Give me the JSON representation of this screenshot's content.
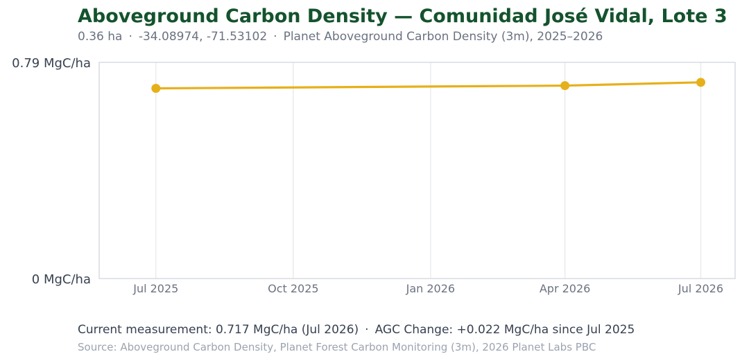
{
  "header": {
    "title": "Aboveground Carbon Density — Comunidad José Vidal, Lote 3",
    "area": "0.36 ha",
    "coords": "-34.08974, -71.53102",
    "product": "Planet Aboveground Carbon Density (3m), 2025–2026",
    "separator": "·"
  },
  "footer": {
    "current": "Current measurement: 0.717 MgC/ha (Jul 2026)",
    "change": "AGC Change: +0.022 MgC/ha since Jul 2025",
    "separator": "·",
    "source": "Source: Aboveground Carbon Density, Planet Forest Carbon Monitoring (3m), 2026 Planet Labs PBC"
  },
  "colors": {
    "title": "#14532d",
    "line": "#e6b01a",
    "grid": "#e5e7eb",
    "frame": "#d1d5db"
  },
  "chart_data": {
    "type": "line",
    "x": [
      "2025-07-01",
      "2026-04-01",
      "2026-07-01"
    ],
    "series": [
      {
        "values": [
          0.695,
          0.705,
          0.717
        ]
      }
    ],
    "ylim": [
      0,
      0.79
    ],
    "xlim": [
      "2025-05-24",
      "2026-07-24"
    ],
    "y_tick_labels": [
      "0 MgC/ha",
      "0.79 MgC/ha"
    ],
    "x_ticks": [
      "2025-07-01",
      "2025-10-01",
      "2026-01-01",
      "2026-04-01",
      "2026-07-01"
    ],
    "x_tick_labels": [
      "Jul 2025",
      "Oct 2025",
      "Jan 2026",
      "Apr 2026",
      "Jul 2026"
    ],
    "grid": "vertical",
    "legend": "none"
  }
}
